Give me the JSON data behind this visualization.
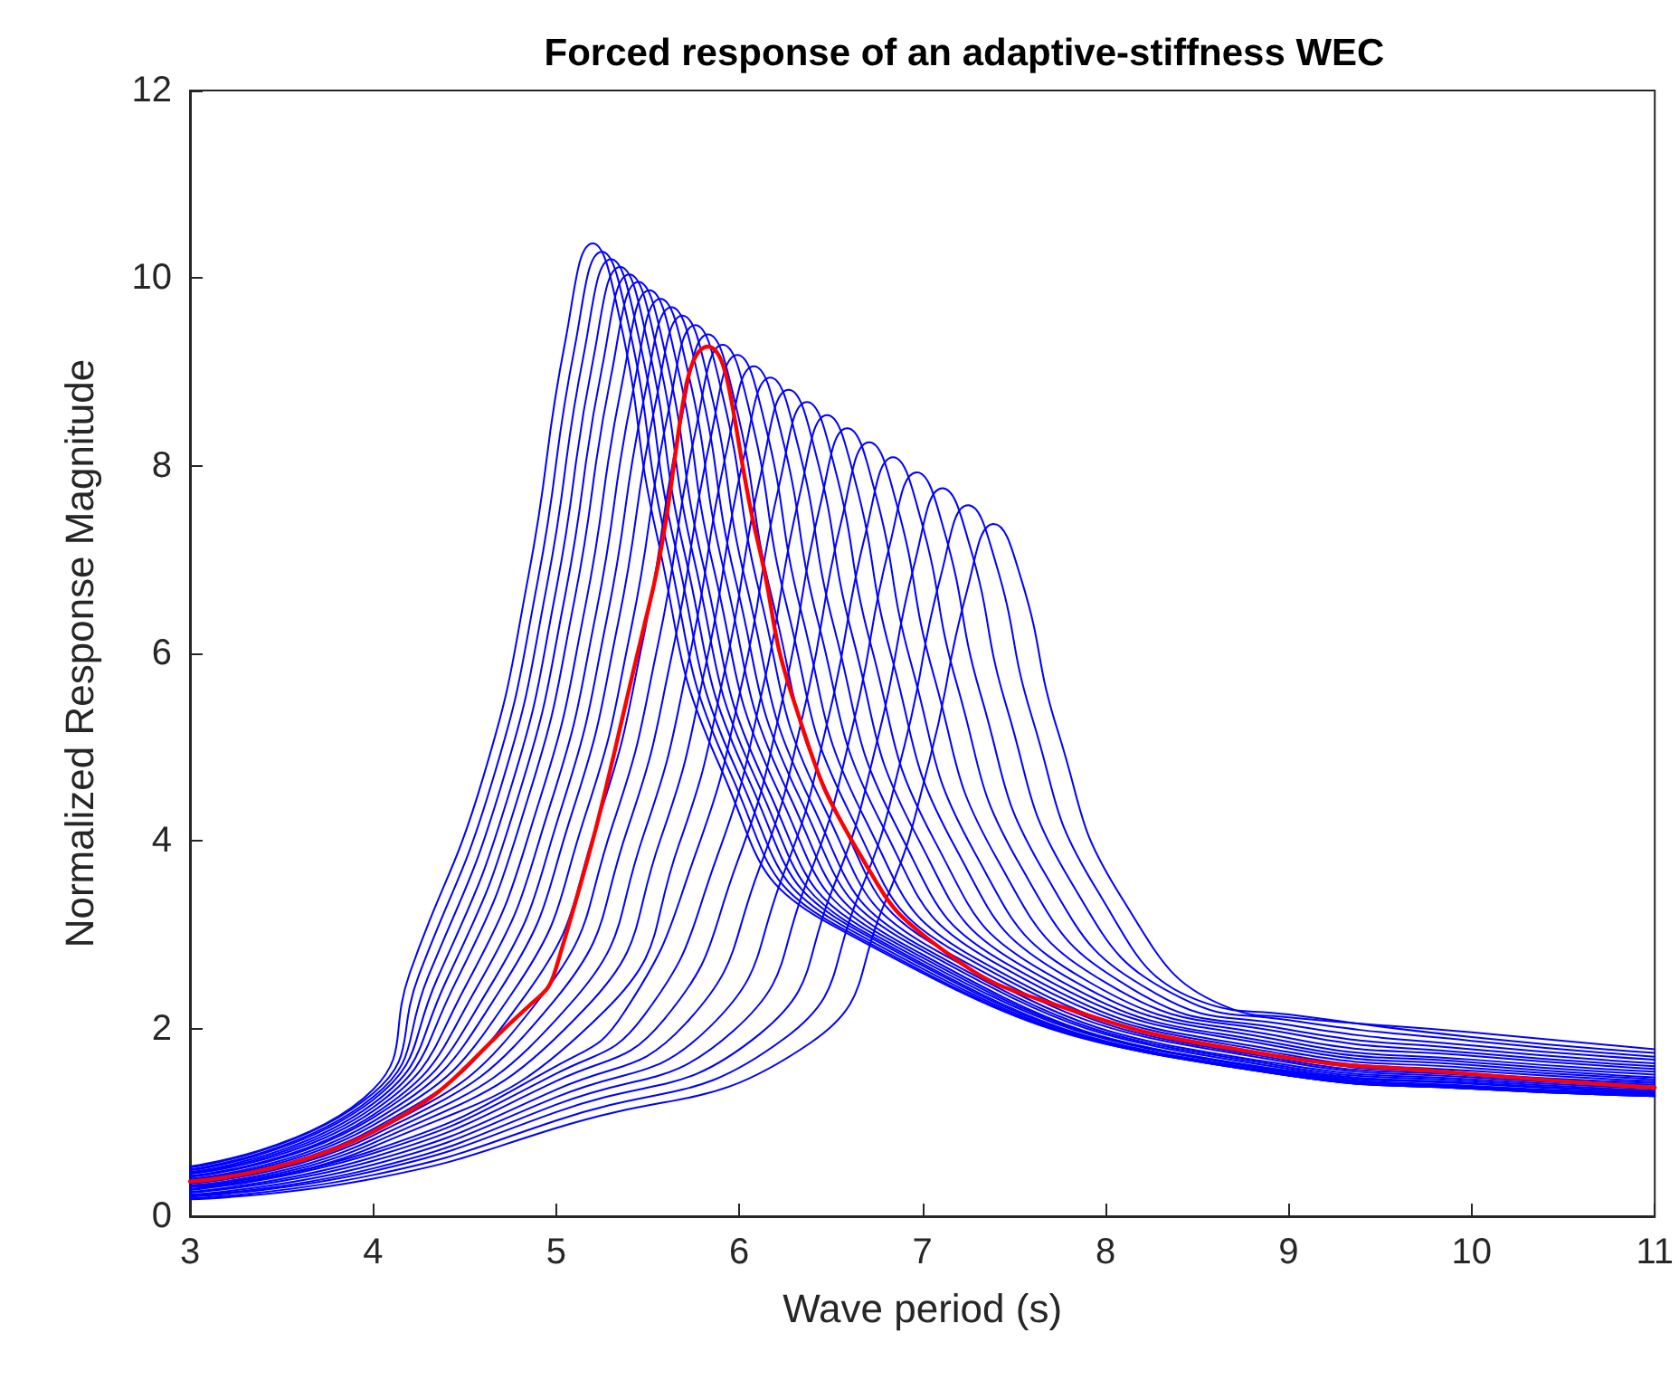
{
  "chart_data": {
    "type": "line",
    "title": "Forced response of an adaptive-stiffness WEC",
    "xlabel": "Wave period (s)",
    "ylabel": "Normalized Response Magnitude",
    "xlim": [
      3,
      11
    ],
    "xticks": [
      3,
      4,
      5,
      6,
      7,
      8,
      9,
      10,
      11
    ],
    "ylim": [
      0,
      12
    ],
    "yticks": [
      0,
      2,
      4,
      6,
      8,
      10,
      12
    ],
    "grid": false,
    "marker": "none",
    "line_style": "solid",
    "series": [
      {
        "color": "#0000ff",
        "x": [
          3,
          4,
          4.2,
          4.6,
          4.85,
          5.05,
          5.2,
          5.35,
          5.55,
          5.9,
          6.5,
          9,
          10,
          11
        ],
        "values": [
          0.53,
          1.35,
          2.59,
          4.67,
          6.84,
          9.33,
          10.37,
          9.54,
          7.26,
          4.77,
          3.11,
          1.5,
          1.36,
          1.28
        ]
      },
      {
        "color": "#0000ff",
        "x": [
          3,
          4,
          4.25,
          4.65,
          4.9,
          5.1,
          5.25,
          5.4,
          5.6,
          5.95,
          6.55,
          9,
          10,
          11
        ],
        "values": [
          0.52,
          1.31,
          2.57,
          4.63,
          6.78,
          9.25,
          10.28,
          9.46,
          7.2,
          4.73,
          3.08,
          1.5,
          1.36,
          1.28
        ]
      },
      {
        "color": "#0000ff",
        "x": [
          3,
          4,
          4.3,
          4.7,
          4.95,
          5.15,
          5.3,
          5.45,
          5.65,
          6.0,
          6.6,
          9,
          10,
          11
        ],
        "values": [
          0.5,
          1.27,
          2.55,
          4.59,
          6.73,
          9.18,
          10.2,
          9.38,
          7.14,
          4.69,
          3.06,
          1.5,
          1.36,
          1.28
        ]
      },
      {
        "color": "#0000ff",
        "x": [
          3,
          4,
          4.35,
          4.75,
          5.0,
          5.2,
          5.35,
          5.5,
          5.7,
          6.05,
          6.65,
          9,
          10,
          11
        ],
        "values": [
          0.49,
          1.24,
          2.53,
          4.55,
          6.68,
          9.11,
          10.12,
          9.31,
          7.08,
          4.66,
          3.04,
          1.51,
          1.37,
          1.29
        ]
      },
      {
        "color": "#0000ff",
        "x": [
          3,
          4,
          4.4,
          4.8,
          5.05,
          5.25,
          5.4,
          5.55,
          5.75,
          6.1,
          6.7,
          9,
          10,
          11
        ],
        "values": [
          0.47,
          1.2,
          2.51,
          4.52,
          6.63,
          9.04,
          10.04,
          9.24,
          7.03,
          4.62,
          3.01,
          1.52,
          1.38,
          1.29
        ]
      },
      {
        "color": "#0000ff",
        "x": [
          3,
          4,
          4.45,
          4.85,
          5.1,
          5.3,
          5.45,
          5.6,
          5.8,
          6.15,
          6.75,
          9,
          10,
          11
        ],
        "values": [
          0.46,
          1.16,
          2.49,
          4.48,
          6.57,
          8.96,
          9.96,
          9.16,
          6.97,
          4.58,
          2.99,
          1.53,
          1.38,
          1.3
        ]
      },
      {
        "color": "#0000ff",
        "x": [
          3,
          4,
          4.51,
          4.91,
          5.16,
          5.36,
          5.51,
          5.66,
          5.86,
          6.21,
          6.81,
          9,
          10,
          11
        ],
        "values": [
          0.45,
          1.12,
          2.47,
          4.44,
          6.51,
          8.88,
          9.87,
          9.08,
          6.91,
          4.54,
          2.96,
          1.54,
          1.39,
          1.31
        ]
      },
      {
        "color": "#0000ff",
        "x": [
          3,
          4,
          4.57,
          4.97,
          5.22,
          5.42,
          5.57,
          5.72,
          5.92,
          6.27,
          6.87,
          9,
          10,
          11
        ],
        "values": [
          0.43,
          1.08,
          2.45,
          4.4,
          6.45,
          8.8,
          9.78,
          9.0,
          6.85,
          4.5,
          2.93,
          1.55,
          1.41,
          1.32
        ]
      },
      {
        "color": "#0000ff",
        "x": [
          3,
          4,
          4.63,
          5.03,
          5.28,
          5.48,
          5.63,
          5.78,
          5.98,
          6.33,
          6.93,
          9,
          10,
          11
        ],
        "values": [
          0.42,
          1.05,
          2.42,
          4.36,
          6.4,
          8.72,
          9.69,
          8.91,
          6.78,
          4.46,
          2.91,
          1.57,
          1.42,
          1.33
        ]
      },
      {
        "color": "#0000ff",
        "x": [
          3,
          4,
          4.69,
          5.09,
          5.34,
          5.54,
          5.69,
          5.84,
          6.04,
          6.39,
          6.99,
          9,
          10,
          11
        ],
        "values": [
          0.4,
          1.01,
          2.4,
          4.32,
          6.34,
          8.64,
          9.6,
          8.83,
          6.72,
          4.42,
          2.88,
          1.59,
          1.44,
          1.34
        ]
      },
      {
        "color": "#0000ff",
        "x": [
          3,
          4,
          4.76,
          5.16,
          5.41,
          5.61,
          5.76,
          5.91,
          6.11,
          6.46,
          7.06,
          9,
          10,
          11
        ],
        "values": [
          0.39,
          0.97,
          2.38,
          4.28,
          6.27,
          8.55,
          9.5,
          8.74,
          6.65,
          4.37,
          2.85,
          1.61,
          1.46,
          1.36
        ]
      },
      {
        "color": "#0000ff",
        "x": [
          3,
          4,
          4.83,
          5.23,
          5.48,
          5.68,
          5.83,
          5.98,
          6.18,
          6.53,
          7.13,
          9,
          10,
          11
        ],
        "values": [
          0.38,
          0.93,
          2.35,
          4.23,
          6.2,
          8.46,
          9.4,
          8.65,
          6.58,
          4.32,
          2.82,
          1.64,
          1.48,
          1.38
        ]
      },
      {
        "color": "#0000ff",
        "x": [
          3,
          4,
          4.91,
          5.31,
          5.56,
          5.76,
          5.91,
          6.06,
          6.26,
          6.61,
          7.21,
          9,
          10,
          11
        ],
        "values": [
          0.36,
          0.89,
          2.32,
          4.18,
          6.13,
          8.36,
          9.29,
          8.55,
          6.5,
          4.27,
          2.79,
          1.66,
          1.5,
          1.4
        ]
      },
      {
        "color": "#0000ff",
        "x": [
          3,
          4,
          4.99,
          5.39,
          5.64,
          5.84,
          5.99,
          6.14,
          6.34,
          6.69,
          7.29,
          9,
          10,
          11
        ],
        "values": [
          0.35,
          0.86,
          2.3,
          4.13,
          6.06,
          8.26,
          9.18,
          8.45,
          6.43,
          4.22,
          2.75,
          1.69,
          1.52,
          1.42
        ]
      },
      {
        "color": "#0000ff",
        "x": [
          3,
          4,
          5.08,
          5.48,
          5.73,
          5.93,
          6.08,
          6.23,
          6.43,
          6.78,
          7.38,
          9,
          10,
          11
        ],
        "values": [
          0.33,
          0.82,
          2.27,
          4.08,
          5.98,
          8.15,
          9.06,
          8.34,
          6.34,
          4.17,
          2.72,
          1.72,
          1.55,
          1.44
        ]
      },
      {
        "color": "#0000ff",
        "x": [
          3,
          4,
          5.17,
          5.57,
          5.82,
          6.02,
          6.17,
          6.32,
          6.52,
          6.87,
          7.47,
          9,
          10,
          11
        ],
        "values": [
          0.32,
          0.78,
          2.24,
          4.02,
          5.9,
          8.05,
          8.94,
          8.22,
          6.26,
          4.11,
          2.68,
          1.75,
          1.58,
          1.46
        ]
      },
      {
        "color": "#0000ff",
        "x": [
          3,
          4,
          5.27,
          5.67,
          5.92,
          6.12,
          6.27,
          6.42,
          6.62,
          6.97,
          7.57,
          9,
          10,
          11
        ],
        "values": [
          0.31,
          0.74,
          2.2,
          3.96,
          5.81,
          7.93,
          8.81,
          8.11,
          6.17,
          4.05,
          2.64,
          1.79,
          1.61,
          1.48
        ]
      },
      {
        "color": "#0000ff",
        "x": [
          3,
          4,
          5,
          5.37,
          5.77,
          6.02,
          6.22,
          6.37,
          6.52,
          6.72,
          7.07,
          7.67,
          9,
          10,
          11
        ],
        "values": [
          0.29,
          0.7,
          1.6,
          2.17,
          3.91,
          5.73,
          7.81,
          8.68,
          7.99,
          6.08,
          3.99,
          2.6,
          1.82,
          1.64,
          1.51
        ]
      },
      {
        "color": "#0000ff",
        "x": [
          3,
          4,
          5,
          5.48,
          5.88,
          6.13,
          6.33,
          6.48,
          6.63,
          6.83,
          7.18,
          7.78,
          9,
          10,
          11
        ],
        "values": [
          0.28,
          0.67,
          1.52,
          2.14,
          3.84,
          5.64,
          7.69,
          8.54,
          7.86,
          5.98,
          3.93,
          2.56,
          1.86,
          1.67,
          1.54
        ]
      },
      {
        "color": "#0000ff",
        "x": [
          3,
          4,
          5,
          5.59,
          5.99,
          6.24,
          6.44,
          6.59,
          6.74,
          6.94,
          7.29,
          7.89,
          9,
          10,
          11
        ],
        "values": [
          0.26,
          0.63,
          1.44,
          2.1,
          3.78,
          5.54,
          7.56,
          8.4,
          7.73,
          5.88,
          3.86,
          2.52,
          1.9,
          1.71,
          1.57
        ]
      },
      {
        "color": "#0000ff",
        "x": [
          3,
          4,
          5,
          5.71,
          6.11,
          6.36,
          6.56,
          6.71,
          6.86,
          7.06,
          7.41,
          8.01,
          9,
          10,
          11
        ],
        "values": [
          0.25,
          0.59,
          1.35,
          2.06,
          3.71,
          5.45,
          7.43,
          8.25,
          7.59,
          5.78,
          3.8,
          2.48,
          1.95,
          1.74,
          1.6
        ]
      },
      {
        "color": "#0000ff",
        "x": [
          3,
          4,
          5,
          5.84,
          6.24,
          6.49,
          6.69,
          6.84,
          6.99,
          7.19,
          7.54,
          8.14,
          9,
          10,
          11
        ],
        "values": [
          0.23,
          0.55,
          1.27,
          2.02,
          3.64,
          5.34,
          7.28,
          8.09,
          7.44,
          5.66,
          3.72,
          2.43,
          1.99,
          1.78,
          1.63
        ]
      },
      {
        "color": "#0000ff",
        "x": [
          3,
          4,
          5,
          5.97,
          6.37,
          6.62,
          6.82,
          6.97,
          7.12,
          7.32,
          7.67,
          8.27,
          9,
          10,
          11
        ],
        "values": [
          0.22,
          0.51,
          1.19,
          1.98,
          3.57,
          5.23,
          7.14,
          7.93,
          7.3,
          5.55,
          3.65,
          2.38,
          2.04,
          1.82,
          1.67
        ]
      },
      {
        "color": "#0000ff",
        "x": [
          3,
          4,
          5,
          6.11,
          6.51,
          6.76,
          6.96,
          7.11,
          7.26,
          7.46,
          7.81,
          8.41,
          9,
          10,
          11
        ],
        "values": [
          0.21,
          0.48,
          1.11,
          1.94,
          3.49,
          5.12,
          6.98,
          7.76,
          7.14,
          5.43,
          3.57,
          2.33,
          2.09,
          1.87,
          1.7
        ]
      },
      {
        "color": "#0000ff",
        "x": [
          3,
          4,
          5,
          6.25,
          6.65,
          6.9,
          7.1,
          7.25,
          7.4,
          7.6,
          7.95,
          8.55,
          9,
          10,
          11
        ],
        "values": [
          0.19,
          0.44,
          1.02,
          1.9,
          3.41,
          5.0,
          6.82,
          7.58,
          6.97,
          5.31,
          3.49,
          2.27,
          2.15,
          1.91,
          1.74
        ]
      },
      {
        "color": "#0000ff",
        "x": [
          3,
          4,
          5,
          6.39,
          6.79,
          7.04,
          7.24,
          7.39,
          7.54,
          7.74,
          8.09,
          8.69,
          9,
          10,
          11
        ],
        "values": [
          0.18,
          0.4,
          0.94,
          1.85,
          3.32,
          4.87,
          6.64,
          7.38,
          6.79,
          5.17,
          3.39,
          2.21,
          2.12,
          1.96,
          1.78
        ]
      },
      {
        "color": "#ff0000",
        "x": [
          3,
          4,
          4.85,
          5,
          5.51,
          5.83,
          6.1,
          6.3,
          6.67,
          7.09,
          7.75,
          8.87,
          9.85,
          11
        ],
        "values": [
          0.37,
          0.9,
          2.24,
          2.65,
          6.53,
          9.27,
          7.2,
          5.48,
          3.82,
          2.87,
          2.24,
          1.73,
          1.54,
          1.37
        ]
      }
    ]
  }
}
